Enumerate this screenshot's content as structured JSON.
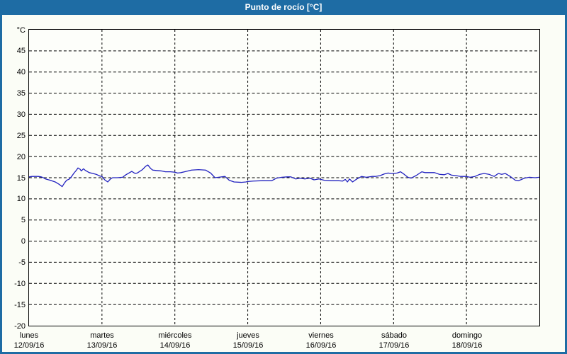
{
  "window": {
    "title": "Punto de rocío [°C]"
  },
  "colors": {
    "titlebar": "#1e6ca4",
    "border": "#1e6ca4",
    "title_text": "#ffffff",
    "background": "#fbfdf6",
    "plot_background": "#fdfefa",
    "gridline": "#000000",
    "frame": "#000000",
    "series_line": "#2121c0",
    "label_text": "#000000"
  },
  "chart_data": {
    "type": "line",
    "title": "Punto de rocío [°C]",
    "xlabel": "",
    "ylabel": "°C",
    "ylim": [
      -20,
      50
    ],
    "xlim_hours": [
      0,
      168
    ],
    "yticks": [
      45,
      40,
      35,
      30,
      25,
      20,
      15,
      10,
      5,
      0,
      -5,
      -10,
      -15,
      -20
    ],
    "grid": "dashed",
    "legend_position": "none",
    "x_axis_days": [
      {
        "name": "lunes",
        "date": "12/09/16"
      },
      {
        "name": "martes",
        "date": "13/09/16"
      },
      {
        "name": "miércoles",
        "date": "14/09/16"
      },
      {
        "name": "jueves",
        "date": "15/09/16"
      },
      {
        "name": "viernes",
        "date": "16/09/16"
      },
      {
        "name": "sábado",
        "date": "17/09/16"
      },
      {
        "name": "domingo",
        "date": "18/09/16"
      }
    ],
    "series": [
      {
        "name": "Punto de rocío",
        "color": "#2121c0",
        "points": [
          [
            0,
            15.2
          ],
          [
            1,
            15.3
          ],
          [
            3,
            15.3
          ],
          [
            4,
            15.2
          ],
          [
            4.7,
            15.0
          ],
          [
            5.4,
            14.7
          ],
          [
            7,
            14.4
          ],
          [
            8.6,
            14.0
          ],
          [
            10,
            13.4
          ],
          [
            10.9,
            12.9
          ],
          [
            11.7,
            13.8
          ],
          [
            12.4,
            14.4
          ],
          [
            13.3,
            14.7
          ],
          [
            14,
            15.3
          ],
          [
            14.7,
            16.0
          ],
          [
            15.6,
            16.8
          ],
          [
            16.1,
            17.3
          ],
          [
            16.8,
            17.0
          ],
          [
            17.2,
            16.6
          ],
          [
            17.9,
            17.1
          ],
          [
            18.6,
            16.7
          ],
          [
            19.8,
            16.2
          ],
          [
            21,
            16.0
          ],
          [
            22.1,
            15.8
          ],
          [
            23.3,
            15.4
          ],
          [
            24,
            15.3
          ],
          [
            24.9,
            14.5
          ],
          [
            25.9,
            14.0
          ],
          [
            26.8,
            14.7
          ],
          [
            27.5,
            15.0
          ],
          [
            29,
            15.0
          ],
          [
            30.8,
            15.1
          ],
          [
            31.9,
            15.7
          ],
          [
            33.1,
            16.2
          ],
          [
            33.8,
            16.5
          ],
          [
            34.9,
            16.0
          ],
          [
            35.6,
            16.1
          ],
          [
            37.3,
            16.9
          ],
          [
            38.4,
            17.7
          ],
          [
            39.1,
            18.0
          ],
          [
            40,
            17.2
          ],
          [
            40.7,
            16.8
          ],
          [
            41.9,
            16.7
          ],
          [
            43.5,
            16.6
          ],
          [
            44.9,
            16.4
          ],
          [
            46.6,
            16.4
          ],
          [
            48,
            16.3
          ],
          [
            48.9,
            16.1
          ],
          [
            50,
            16.2
          ],
          [
            51.2,
            16.4
          ],
          [
            53.5,
            16.8
          ],
          [
            55.8,
            16.9
          ],
          [
            58.1,
            16.8
          ],
          [
            59.8,
            16.1
          ],
          [
            61.2,
            15.0
          ],
          [
            62.4,
            15.1
          ],
          [
            64.5,
            15.3
          ],
          [
            65.9,
            14.4
          ],
          [
            67.5,
            14.0
          ],
          [
            69.8,
            13.9
          ],
          [
            71.4,
            14.0
          ],
          [
            72,
            14.1
          ],
          [
            73.8,
            14.2
          ],
          [
            76.9,
            14.3
          ],
          [
            79.9,
            14.3
          ],
          [
            81.5,
            14.9
          ],
          [
            83.2,
            15.1
          ],
          [
            85,
            15.2
          ],
          [
            86.2,
            15.2
          ],
          [
            87.8,
            14.7
          ],
          [
            89.2,
            14.9
          ],
          [
            90.8,
            14.7
          ],
          [
            92.4,
            14.9
          ],
          [
            93.8,
            14.5
          ],
          [
            95.5,
            14.7
          ],
          [
            96,
            14.6
          ],
          [
            97.2,
            14.4
          ],
          [
            99.5,
            14.3
          ],
          [
            101.8,
            14.3
          ],
          [
            103.2,
            14.2
          ],
          [
            104.1,
            14.6
          ],
          [
            104.8,
            14.0
          ],
          [
            105.5,
            14.7
          ],
          [
            106.5,
            14.0
          ],
          [
            107.9,
            14.7
          ],
          [
            109.5,
            15.3
          ],
          [
            111,
            15.1
          ],
          [
            112.9,
            15.3
          ],
          [
            114,
            15.3
          ],
          [
            115.6,
            15.5
          ],
          [
            117,
            15.9
          ],
          [
            118.2,
            16.1
          ],
          [
            119.1,
            16.0
          ],
          [
            120,
            16.0
          ],
          [
            121.2,
            16.1
          ],
          [
            122.3,
            16.4
          ],
          [
            123.5,
            15.8
          ],
          [
            124.7,
            15.1
          ],
          [
            125.8,
            14.9
          ],
          [
            127.4,
            15.5
          ],
          [
            129.3,
            16.4
          ],
          [
            130.4,
            16.2
          ],
          [
            133.5,
            16.2
          ],
          [
            135.1,
            15.8
          ],
          [
            136.7,
            15.7
          ],
          [
            137.9,
            16.0
          ],
          [
            139.1,
            15.6
          ],
          [
            140.5,
            15.5
          ],
          [
            142.1,
            15.3
          ],
          [
            144,
            15.3
          ],
          [
            145.2,
            15.1
          ],
          [
            146.8,
            15.3
          ],
          [
            148.4,
            15.8
          ],
          [
            149.8,
            16.0
          ],
          [
            151.4,
            15.8
          ],
          [
            153.1,
            15.3
          ],
          [
            154.5,
            16.0
          ],
          [
            155.6,
            15.8
          ],
          [
            156.8,
            16.0
          ],
          [
            158.4,
            15.3
          ],
          [
            160.1,
            14.4
          ],
          [
            161.2,
            14.3
          ],
          [
            163.1,
            14.9
          ],
          [
            164.7,
            15.1
          ],
          [
            166.6,
            15.0
          ],
          [
            168,
            15.1
          ]
        ]
      }
    ]
  }
}
